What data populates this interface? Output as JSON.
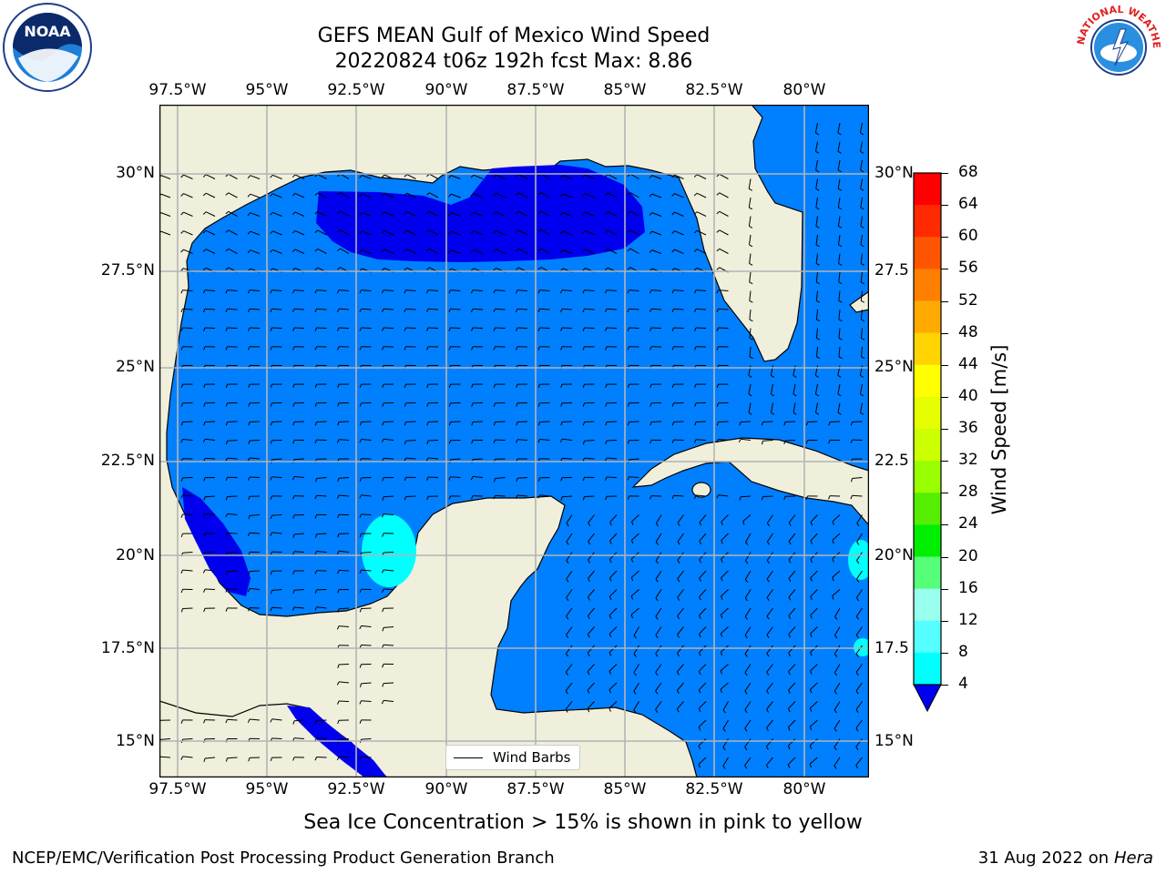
{
  "title_line1": "GEFS MEAN Gulf of Mexico Wind Speed",
  "title_line2": "20220824 t06z 192h fcst   Max: 8.86",
  "lon_labels": [
    "97.5°W",
    "95°W",
    "92.5°W",
    "90°W",
    "87.5°W",
    "85°W",
    "82.5°W",
    "80°W"
  ],
  "lat_labels_left": [
    "30°N",
    "27.5°N",
    "25°N",
    "22.5°N",
    "20°N",
    "17.5°N",
    "15°N"
  ],
  "lat_labels_right": [
    "30°N",
    "27.5",
    "25°N",
    "22.5",
    "20°N",
    "17.5",
    "15°N"
  ],
  "legend_label": "Wind Barbs",
  "colorbar": {
    "label": "Wind Speed [m/s]",
    "ticks": [
      "68",
      "64",
      "60",
      "56",
      "52",
      "48",
      "44",
      "40",
      "36",
      "32",
      "28",
      "24",
      "20",
      "16",
      "12",
      "8",
      "4"
    ],
    "colors": [
      "#ff0000",
      "#ff2a00",
      "#ff5500",
      "#ff7f00",
      "#ffaa00",
      "#ffd400",
      "#ffff00",
      "#e5ff00",
      "#ccff00",
      "#99ff00",
      "#55ee00",
      "#00ee00",
      "#55ff77",
      "#99ffee",
      "#55ffff",
      "#00ffff",
      "#0080ff"
    ],
    "extend_color": "#0000ee"
  },
  "colors": {
    "land": "#efefdc",
    "ocean_4_8": "#0080ff",
    "ocean_lt4": "#0000ee",
    "ocean_8_12": "#00ffff",
    "grid": "#b4b4b4"
  },
  "sea_ice_note": "Sea Ice Concentration > 15% is shown in pink to yellow",
  "footer_left": "NCEP/EMC/Verification Post Processing Product Generation Branch",
  "footer_right_prefix": "31 Aug 2022 on",
  "footer_right_italic": "Hera",
  "logos": {
    "noaa_text": "NOAA",
    "nws_text": "NATIONAL WEATHER SERVICE"
  }
}
